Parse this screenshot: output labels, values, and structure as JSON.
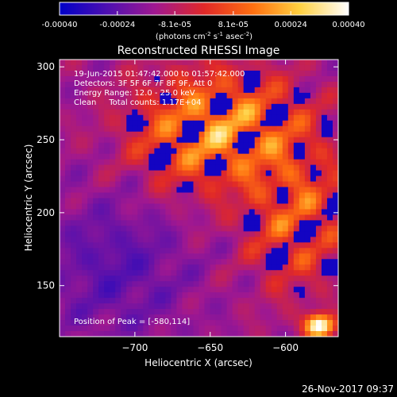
{
  "chart_data": {
    "type": "heatmap",
    "title": "Reconstructed RHESSI Image",
    "colorbar": {
      "ticks": [
        "-0.00040",
        "-0.00024",
        "-8.1e-05",
        "8.1e-05",
        "0.00024",
        "0.00040"
      ],
      "tick_values": [
        -0.0004,
        -0.00024,
        -8.1e-05,
        8.1e-05,
        0.00024,
        0.0004
      ],
      "range": [
        -0.0004,
        0.0004
      ],
      "unit_label_parts": [
        "(photons cm",
        "-2",
        " s",
        "-1",
        " asec",
        "-2",
        ")"
      ],
      "colors": [
        "#0000c8",
        "#5010b0",
        "#a01890",
        "#e02828",
        "#ff7010",
        "#ffd040",
        "#ffffff"
      ]
    },
    "xlabel": "Heliocentric X (arcsec)",
    "ylabel": "Heliocentric Y (arcsec)",
    "x_ticks": [
      {
        "value": -700,
        "label": "−700"
      },
      {
        "value": -650,
        "label": "−650"
      },
      {
        "value": -600,
        "label": "−600"
      }
    ],
    "y_ticks": [
      {
        "value": 150,
        "label": "150"
      },
      {
        "value": 200,
        "label": "200"
      },
      {
        "value": 250,
        "label": "250"
      },
      {
        "value": 300,
        "label": "300"
      }
    ],
    "xlim": [
      -750,
      -565
    ],
    "ylim": [
      115,
      305
    ],
    "annotations": [
      "19-Jun-2015 01:47:42.000 to 01:57:42.000",
      "Detectors: 3F 5F 6F 7F 8F 9F, Att 0",
      "Energy Range: 12.0 - 25.0 keV",
      "Clean     Total counts: 1.17E+04"
    ],
    "peak_label": "Position of Peak = [-580,114]",
    "peak_position": [
      -580,
      114
    ],
    "grid": false
  },
  "footer": {
    "timestamp": "26-Nov-2017 09:37"
  }
}
